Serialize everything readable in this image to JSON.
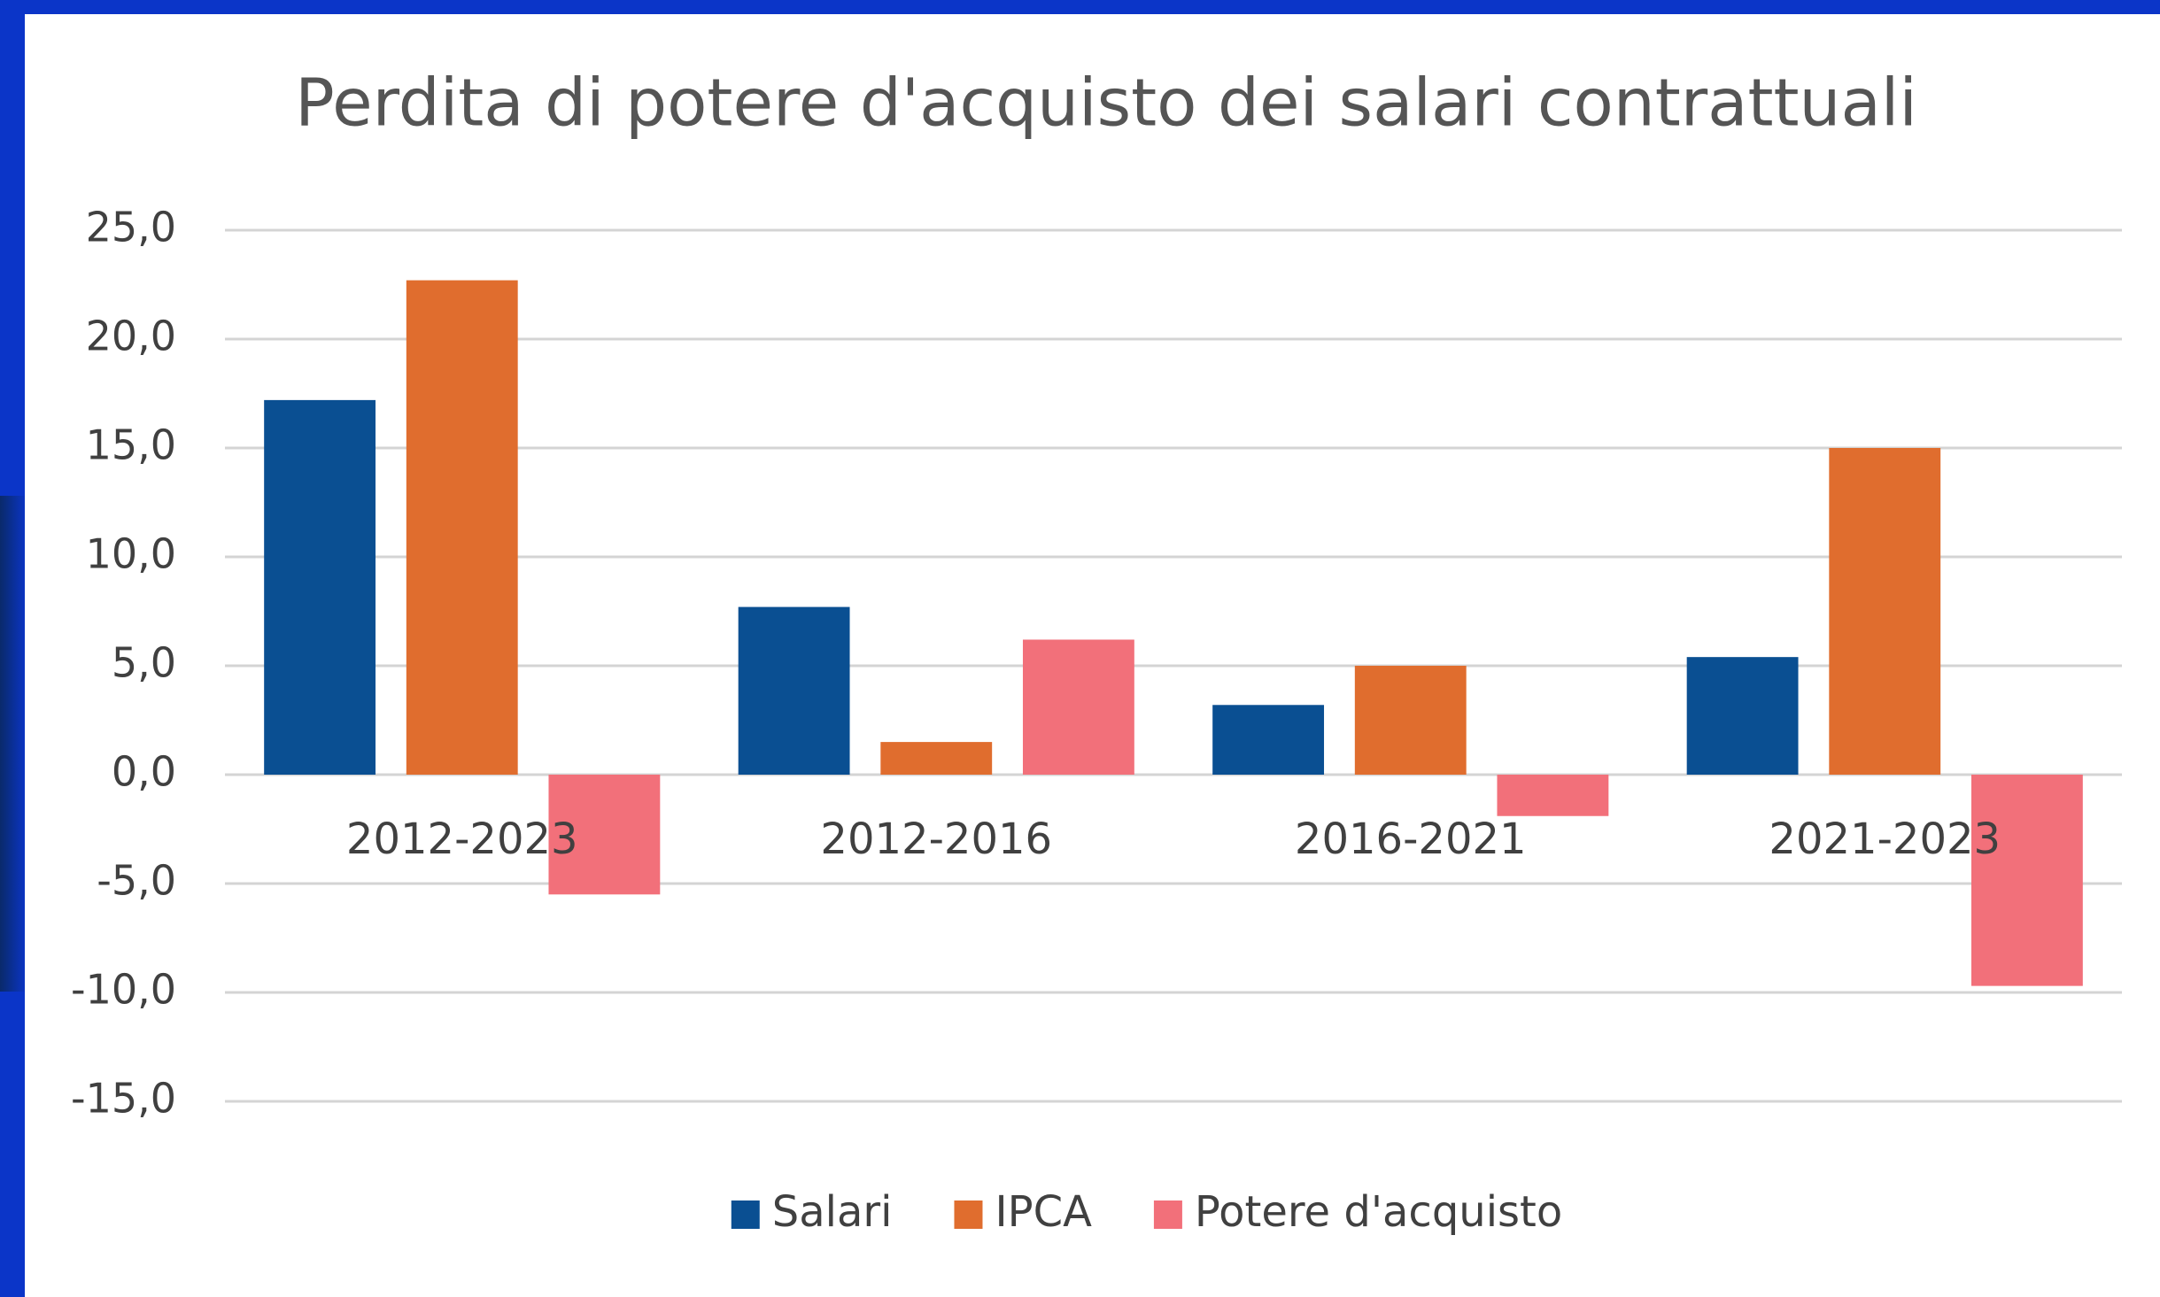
{
  "chart_data": {
    "type": "bar",
    "title": "Perdita di potere d'acquisto dei salari contrattuali",
    "categories": [
      "2012-2023",
      "2012-2016",
      "2016-2021",
      "2021-2023"
    ],
    "series": [
      {
        "name": "Salari",
        "color": "#0a4f92",
        "values": [
          17.2,
          7.7,
          3.2,
          5.4
        ]
      },
      {
        "name": "IPCA",
        "color": "#e06d2e",
        "values": [
          22.7,
          1.5,
          5.0,
          15.0
        ]
      },
      {
        "name": "Potere d'acquisto",
        "color": "#f2707a",
        "values": [
          -5.5,
          6.2,
          -1.9,
          -9.7
        ]
      }
    ],
    "ylim": [
      -15,
      25
    ],
    "yticks": [
      {
        "value": -15,
        "label": "-15,0"
      },
      {
        "value": -10,
        "label": "-10,0"
      },
      {
        "value": -5,
        "label": "-5,0"
      },
      {
        "value": 0,
        "label": "0,0"
      },
      {
        "value": 5,
        "label": "5,0"
      },
      {
        "value": 10,
        "label": "10,0"
      },
      {
        "value": 15,
        "label": "15,0"
      },
      {
        "value": 20,
        "label": "20,0"
      },
      {
        "value": 25,
        "label": "25,0"
      }
    ],
    "grid": true,
    "legend": "bottom"
  }
}
